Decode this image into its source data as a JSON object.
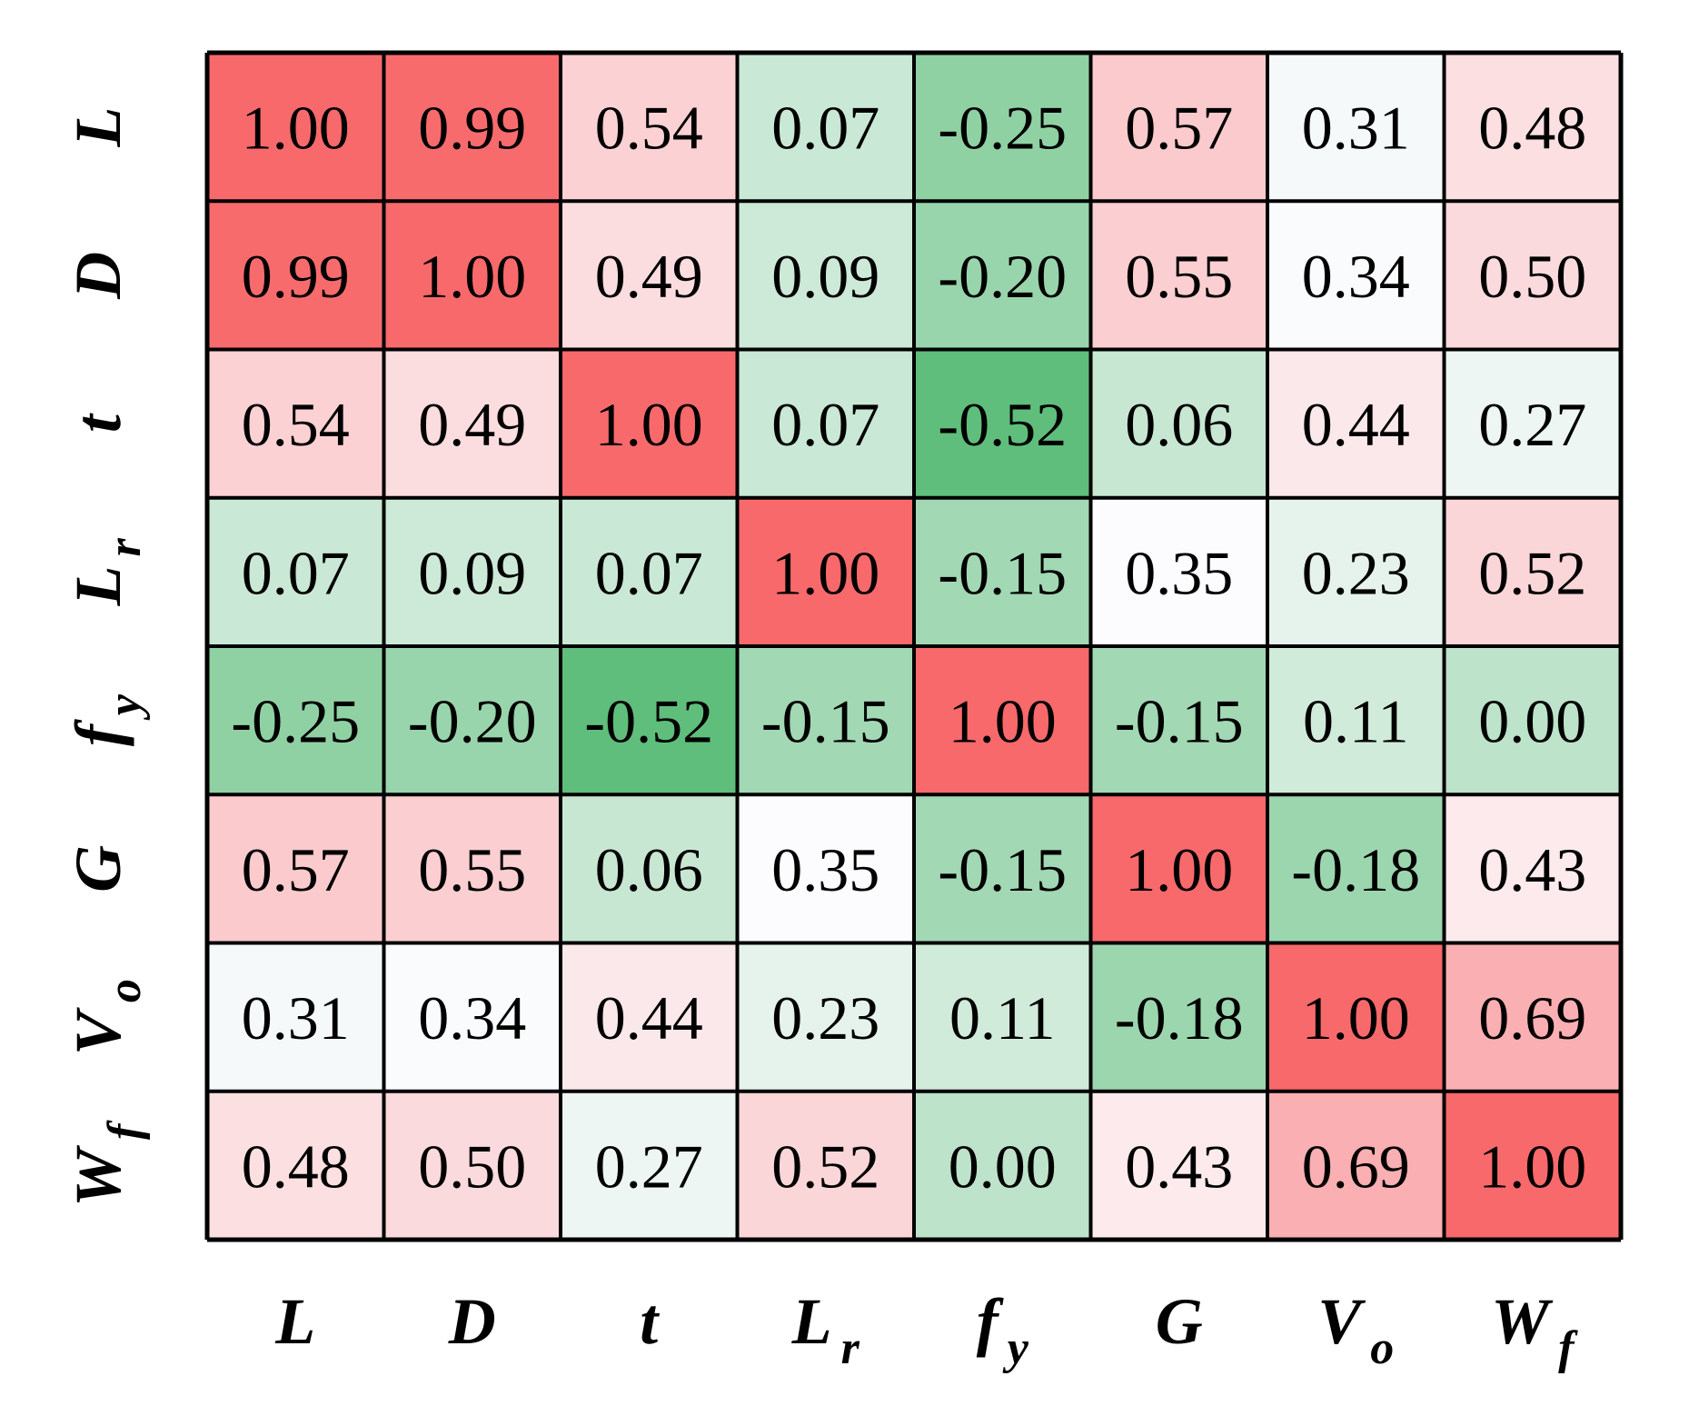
{
  "chart_data": {
    "type": "heatmap",
    "x_labels": [
      {
        "base": "L",
        "sub": ""
      },
      {
        "base": "D",
        "sub": ""
      },
      {
        "base": "t",
        "sub": ""
      },
      {
        "base": "L",
        "sub": "r"
      },
      {
        "base": "f",
        "sub": "y"
      },
      {
        "base": "G",
        "sub": ""
      },
      {
        "base": "V",
        "sub": "o"
      },
      {
        "base": "W",
        "sub": "f"
      }
    ],
    "y_labels": [
      {
        "base": "L",
        "sub": ""
      },
      {
        "base": "D",
        "sub": ""
      },
      {
        "base": "t",
        "sub": ""
      },
      {
        "base": "L",
        "sub": "r"
      },
      {
        "base": "f",
        "sub": "y"
      },
      {
        "base": "G",
        "sub": ""
      },
      {
        "base": "V",
        "sub": "o"
      },
      {
        "base": "W",
        "sub": "f"
      }
    ],
    "matrix": [
      [
        1.0,
        0.99,
        0.54,
        0.07,
        -0.25,
        0.57,
        0.31,
        0.48
      ],
      [
        0.99,
        1.0,
        0.49,
        0.09,
        -0.2,
        0.55,
        0.34,
        0.5
      ],
      [
        0.54,
        0.49,
        1.0,
        0.07,
        -0.52,
        0.06,
        0.44,
        0.27
      ],
      [
        0.07,
        0.09,
        0.07,
        1.0,
        -0.15,
        0.35,
        0.23,
        0.52
      ],
      [
        -0.25,
        -0.2,
        -0.52,
        -0.15,
        1.0,
        -0.15,
        0.11,
        0.0
      ],
      [
        0.57,
        0.55,
        0.06,
        0.35,
        -0.15,
        1.0,
        -0.18,
        0.43
      ],
      [
        0.31,
        0.34,
        0.44,
        0.23,
        0.11,
        -0.18,
        1.0,
        0.69
      ],
      [
        0.48,
        0.5,
        0.27,
        0.52,
        0.0,
        0.43,
        0.69,
        1.0
      ]
    ],
    "value_format": "2 decimals",
    "colormap": {
      "low_value": -0.52,
      "mid_value": 0.35,
      "high_value": 1.0,
      "low_color": "#5fbe7b",
      "mid_color": "#fcfcff",
      "high_color": "#f8696b"
    },
    "grid": true,
    "legend": "none"
  }
}
